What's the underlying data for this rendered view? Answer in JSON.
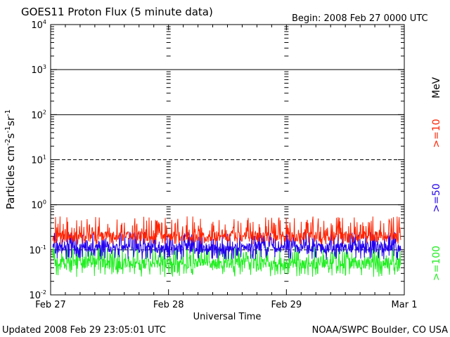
{
  "header": {
    "title": "GOES11 Proton Flux (5 minute data)",
    "begin": "Begin: 2008 Feb 27 0000 UTC"
  },
  "footer": {
    "updated": "Updated 2008 Feb 29 23:05:01 UTC",
    "credit": "NOAA/SWPC Boulder, CO USA"
  },
  "legend": {
    "unit": "MeV",
    "items": [
      {
        "label": ">=10",
        "color": "#ff2200"
      },
      {
        "label": ">=50",
        "color": "#2200ee"
      },
      {
        "label": ">=100",
        "color": "#22ee22"
      }
    ]
  },
  "chart_data": {
    "type": "line",
    "title": "GOES11 Proton Flux (5 minute data)",
    "xlabel": "Universal Time",
    "ylabel": {
      "base": "Particles cm",
      "parts": [
        {
          "t": "-2",
          "sup": true
        },
        {
          "t": "s",
          "sup": false
        },
        {
          "t": "-1",
          "sup": true
        },
        {
          "t": "sr",
          "sup": false
        },
        {
          "t": "-1",
          "sup": true
        }
      ]
    },
    "yscale": "log",
    "ylim": [
      0.01,
      10000
    ],
    "yticks": [
      {
        "value": 0.01,
        "base": "10",
        "exp": "-2"
      },
      {
        "value": 0.1,
        "base": "10",
        "exp": "-1"
      },
      {
        "value": 1,
        "base": "10",
        "exp": "0"
      },
      {
        "value": 10,
        "base": "10",
        "exp": "1"
      },
      {
        "value": 100,
        "base": "10",
        "exp": "2"
      },
      {
        "value": 1000,
        "base": "10",
        "exp": "3"
      },
      {
        "value": 10000,
        "base": "10",
        "exp": "4"
      }
    ],
    "xlim": [
      "2008-02-27",
      "2008-03-01"
    ],
    "xticks": [
      "Feb 27",
      "Feb 28",
      "Feb 29",
      "Mar 1"
    ],
    "grid": true,
    "series": [
      {
        "name": ">=10",
        "color": "#ff2200",
        "typical": 0.2,
        "min": 0.13,
        "max": 0.55
      },
      {
        "name": ">=50",
        "color": "#2200ee",
        "typical": 0.11,
        "min": 0.06,
        "max": 0.25
      },
      {
        "name": ">=100",
        "color": "#22ee22",
        "typical": 0.05,
        "min": 0.025,
        "max": 0.12
      }
    ]
  }
}
